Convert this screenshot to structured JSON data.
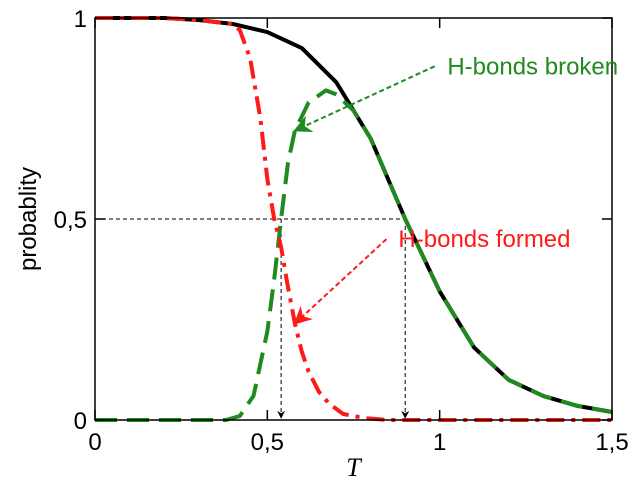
{
  "chart_data": {
    "type": "line",
    "title": "",
    "xlabel": "T",
    "ylabel": "probablity",
    "xlim": [
      0,
      1.5
    ],
    "ylim": [
      0,
      1
    ],
    "x_ticks": [
      "0",
      "0,5",
      "1",
      "1,5"
    ],
    "y_ticks": [
      "0",
      "0,5",
      "1"
    ],
    "grid": false,
    "colors": {
      "total": "#000000",
      "broken": "#1f8a1f",
      "formed": "#ff1a1a",
      "guide": "#000000"
    },
    "series": [
      {
        "line_style": "solid",
        "color": "#000000",
        "x": [
          0,
          0.1,
          0.2,
          0.3,
          0.4,
          0.5,
          0.6,
          0.7,
          0.8,
          0.9,
          1.0,
          1.1,
          1.2,
          1.3,
          1.4,
          1.5
        ],
        "y": [
          1.0,
          1.0,
          1.0,
          0.995,
          0.985,
          0.965,
          0.925,
          0.84,
          0.7,
          0.5,
          0.32,
          0.18,
          0.1,
          0.06,
          0.035,
          0.02
        ]
      },
      {
        "line_style": "dashed",
        "color": "#1f8a1f",
        "x": [
          0,
          0.38,
          0.42,
          0.46,
          0.5,
          0.52,
          0.54,
          0.56,
          0.58,
          0.62,
          0.67,
          0.7,
          0.75,
          0.8,
          0.9,
          1.0,
          1.1,
          1.2,
          1.3,
          1.4,
          1.5
        ],
        "y": [
          0,
          0,
          0.01,
          0.06,
          0.22,
          0.35,
          0.5,
          0.64,
          0.72,
          0.79,
          0.82,
          0.81,
          0.77,
          0.7,
          0.5,
          0.32,
          0.18,
          0.1,
          0.06,
          0.035,
          0.02
        ]
      },
      {
        "line_style": "dash-dot",
        "color": "#ff1a1a",
        "x": [
          0,
          0.2,
          0.3,
          0.4,
          0.42,
          0.45,
          0.48,
          0.5,
          0.52,
          0.54,
          0.56,
          0.58,
          0.6,
          0.62,
          0.65,
          0.68,
          0.72,
          0.78,
          0.85,
          1.0,
          1.5
        ],
        "y": [
          1.0,
          1.0,
          0.995,
          0.985,
          0.97,
          0.9,
          0.75,
          0.6,
          0.5,
          0.43,
          0.33,
          0.24,
          0.17,
          0.12,
          0.07,
          0.04,
          0.015,
          0.005,
          0,
          0,
          0
        ]
      }
    ],
    "guides": {
      "horizontal_y": 0.5,
      "vertical_x": [
        0.54,
        0.9
      ]
    },
    "annotations": [
      {
        "text": "H-bonds broken",
        "color": "#1f8a1f",
        "x": 1.27,
        "y": 0.86,
        "arrow_to": [
          0.58,
          0.72
        ]
      },
      {
        "text": "H-bonds formed",
        "color": "#ff1a1a",
        "x": 1.13,
        "y": 0.43,
        "arrow_to": [
          0.58,
          0.24
        ]
      }
    ]
  }
}
